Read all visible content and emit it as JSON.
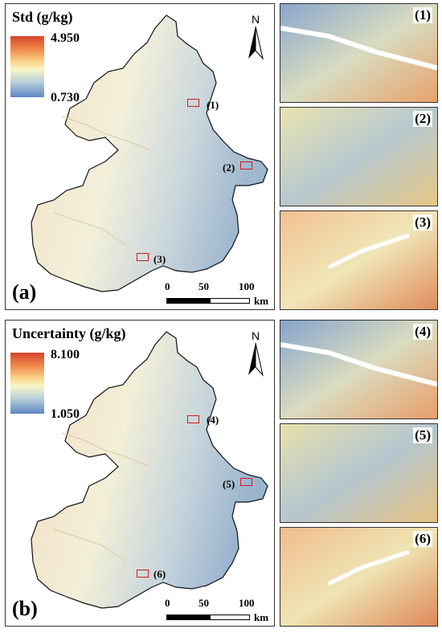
{
  "panels": [
    {
      "title": "Std (g/kg)",
      "legend_max": "4.950",
      "legend_min": "0.730",
      "label": "(a)",
      "regions": [
        "(1)",
        "(2)",
        "(3)"
      ]
    },
    {
      "title": "Uncertainty (g/kg)",
      "legend_max": "8.100",
      "legend_min": "1.050",
      "label": "(b)",
      "regions": [
        "(4)",
        "(5)",
        "(6)"
      ]
    }
  ],
  "north_label": "N",
  "scale": {
    "ticks": [
      "0",
      "50",
      "100"
    ],
    "unit": "km"
  },
  "insets": [
    "(1)",
    "(2)",
    "(3)",
    "(4)",
    "(5)",
    "(6)"
  ],
  "colors": {
    "high": "#d7442c",
    "mid": "#f7f6c8",
    "low": "#5e86c4",
    "box": "#d4161c"
  }
}
